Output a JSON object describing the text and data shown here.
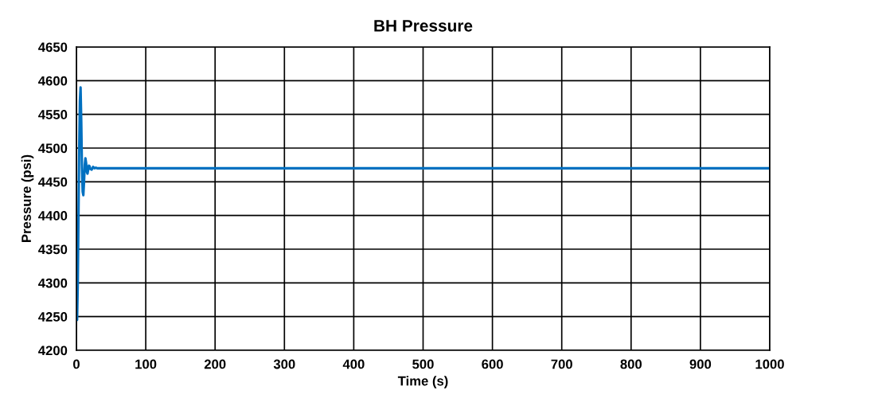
{
  "chart_data": {
    "type": "line",
    "title": "BH Pressure",
    "xlabel": "Time (s)",
    "ylabel": "Pressure (psi)",
    "series": [
      {
        "color": "#0070c0",
        "x": [
          0,
          0.5,
          1,
          2,
          3,
          4,
          5,
          6,
          7,
          8,
          9,
          10,
          11,
          12,
          13,
          14,
          15,
          16,
          17,
          18,
          19,
          20,
          22,
          24,
          26,
          28,
          30,
          40,
          100,
          500,
          1000
        ],
        "values": [
          4350,
          4300,
          4245,
          4300,
          4400,
          4500,
          4570,
          4590,
          4540,
          4470,
          4435,
          4430,
          4450,
          4475,
          4485,
          4478,
          4465,
          4462,
          4468,
          4474,
          4473,
          4469,
          4468,
          4472,
          4470,
          4471,
          4470,
          4470,
          4470,
          4470,
          4470
        ]
      }
    ],
    "xlim": [
      0,
      1000
    ],
    "xticks": [
      0,
      100,
      200,
      300,
      400,
      500,
      600,
      700,
      800,
      900,
      1000
    ],
    "ylim": [
      4200,
      4650
    ],
    "yticks": [
      4200,
      4250,
      4300,
      4350,
      4400,
      4450,
      4500,
      4550,
      4600,
      4650
    ],
    "grid": true
  }
}
